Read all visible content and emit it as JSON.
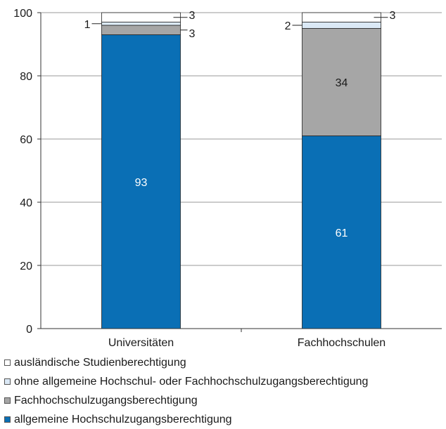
{
  "chart_data": {
    "type": "bar",
    "stacked": true,
    "categories": [
      "Universitäten",
      "Fachhochschulen"
    ],
    "series": [
      {
        "name": "allgemeine Hochschulzugangsberechtigung",
        "color": "#0a6fb5",
        "values": [
          93,
          61
        ]
      },
      {
        "name": "Fachhochschulzugangsberechtigung",
        "color": "#a6a6a6",
        "values": [
          3,
          34
        ]
      },
      {
        "name": "ohne allgemeine Hochschul- oder Fachhochschulzugangsberechtigung",
        "color": "#dbe9f6",
        "values": [
          1,
          2
        ]
      },
      {
        "name": "ausländische Studienberechtigung",
        "color": "#ffffff",
        "values": [
          3,
          3
        ]
      }
    ],
    "ylim": [
      0,
      100
    ],
    "yticks": [
      "0",
      "20",
      "40",
      "60",
      "80",
      "100"
    ],
    "grid": true,
    "legend_position": "bottom-left"
  },
  "legend_order": [
    3,
    2,
    1,
    0
  ]
}
